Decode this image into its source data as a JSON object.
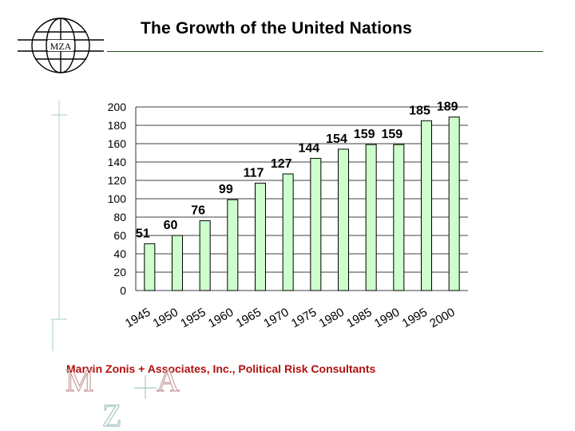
{
  "logo_text": "MZA",
  "title": "The Growth of the United Nations",
  "footer": "Marvin Zonis + Associates, Inc., Political Risk Consultants",
  "colors": {
    "bar_fill": "#ccffcc",
    "bar_stroke": "#000000",
    "grid": "#000000",
    "footer": "#b01010",
    "rule": "#1a5a1a"
  },
  "chart_data": {
    "type": "bar",
    "title": "The Growth of the United Nations",
    "xlabel": "",
    "ylabel": "",
    "categories": [
      "1945",
      "1950",
      "1955",
      "1960",
      "1965",
      "1970",
      "1975",
      "1980",
      "1985",
      "1990",
      "1995",
      "2000"
    ],
    "values": [
      51,
      60,
      76,
      99,
      117,
      127,
      144,
      154,
      159,
      159,
      185,
      189
    ],
    "data_labels": [
      "51",
      "60",
      "76",
      "99",
      "117",
      "127",
      "144",
      "154",
      "159",
      "159",
      "185",
      "189"
    ],
    "ylim": [
      0,
      200
    ],
    "yticks": [
      0,
      20,
      40,
      60,
      80,
      100,
      120,
      140,
      160,
      180,
      200
    ],
    "grid": true,
    "legend": "none"
  }
}
